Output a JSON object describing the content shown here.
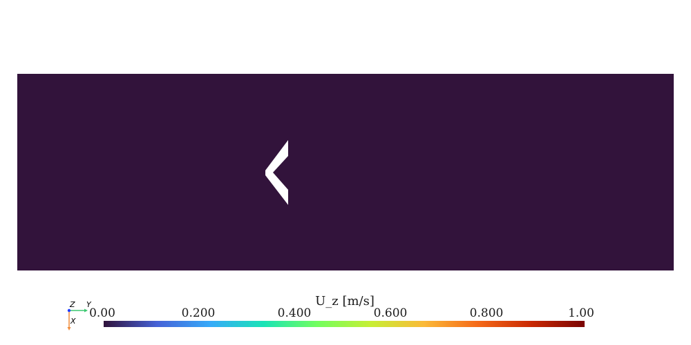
{
  "viewport": {
    "background_color": "#32133b",
    "field_name": "U_z",
    "obstacle_shape": "chevron",
    "obstacle_color": "#ffffff"
  },
  "colorbar": {
    "title": "U_z [m/s]",
    "range": [
      0.0,
      1.0
    ],
    "colormap": "turbo",
    "ticks": [
      {
        "value": 0.0,
        "label": "0.00"
      },
      {
        "value": 0.2,
        "label": "0.200"
      },
      {
        "value": 0.4,
        "label": "0.400"
      },
      {
        "value": 0.6,
        "label": "0.600"
      },
      {
        "value": 0.8,
        "label": "0.800"
      },
      {
        "value": 1.0,
        "label": "1.00"
      }
    ],
    "stops": [
      "#30123b",
      "#4662d7",
      "#36aaf9",
      "#1ae4b6",
      "#72fe5e",
      "#c7ef34",
      "#fbb938",
      "#f56918",
      "#c92903",
      "#7a0403"
    ]
  },
  "axes_triad": {
    "labels": {
      "z": "Z",
      "y": "Y",
      "x": "X"
    },
    "colors": {
      "y": "#3cc870",
      "x": "#f08c3c",
      "z": "#1e3cff"
    }
  }
}
